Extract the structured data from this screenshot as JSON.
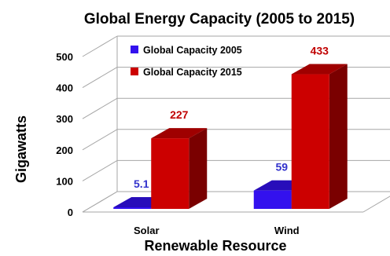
{
  "chart_data": {
    "type": "bar",
    "title": "Global Energy Capacity (2005 to 2015)",
    "xlabel": "Renewable Resource",
    "ylabel": "Gigawatts",
    "categories": [
      "Solar",
      "Wind"
    ],
    "series": [
      {
        "name": "Global Capacity 2005",
        "values": [
          5.1,
          59
        ],
        "labels": [
          "5.1",
          "59"
        ],
        "color": "#3311ee",
        "label_color": "#3333cc"
      },
      {
        "name": "Global Capacity 2015",
        "values": [
          227,
          433
        ],
        "labels": [
          "227",
          "433"
        ],
        "color": "#cc0000",
        "label_color": "#c00000"
      }
    ],
    "ylim": [
      0,
      500
    ],
    "yticks": [
      "0",
      "100",
      "200",
      "300",
      "400",
      "500"
    ],
    "grid": true,
    "legend": "top-left",
    "style": "3d-bar"
  }
}
